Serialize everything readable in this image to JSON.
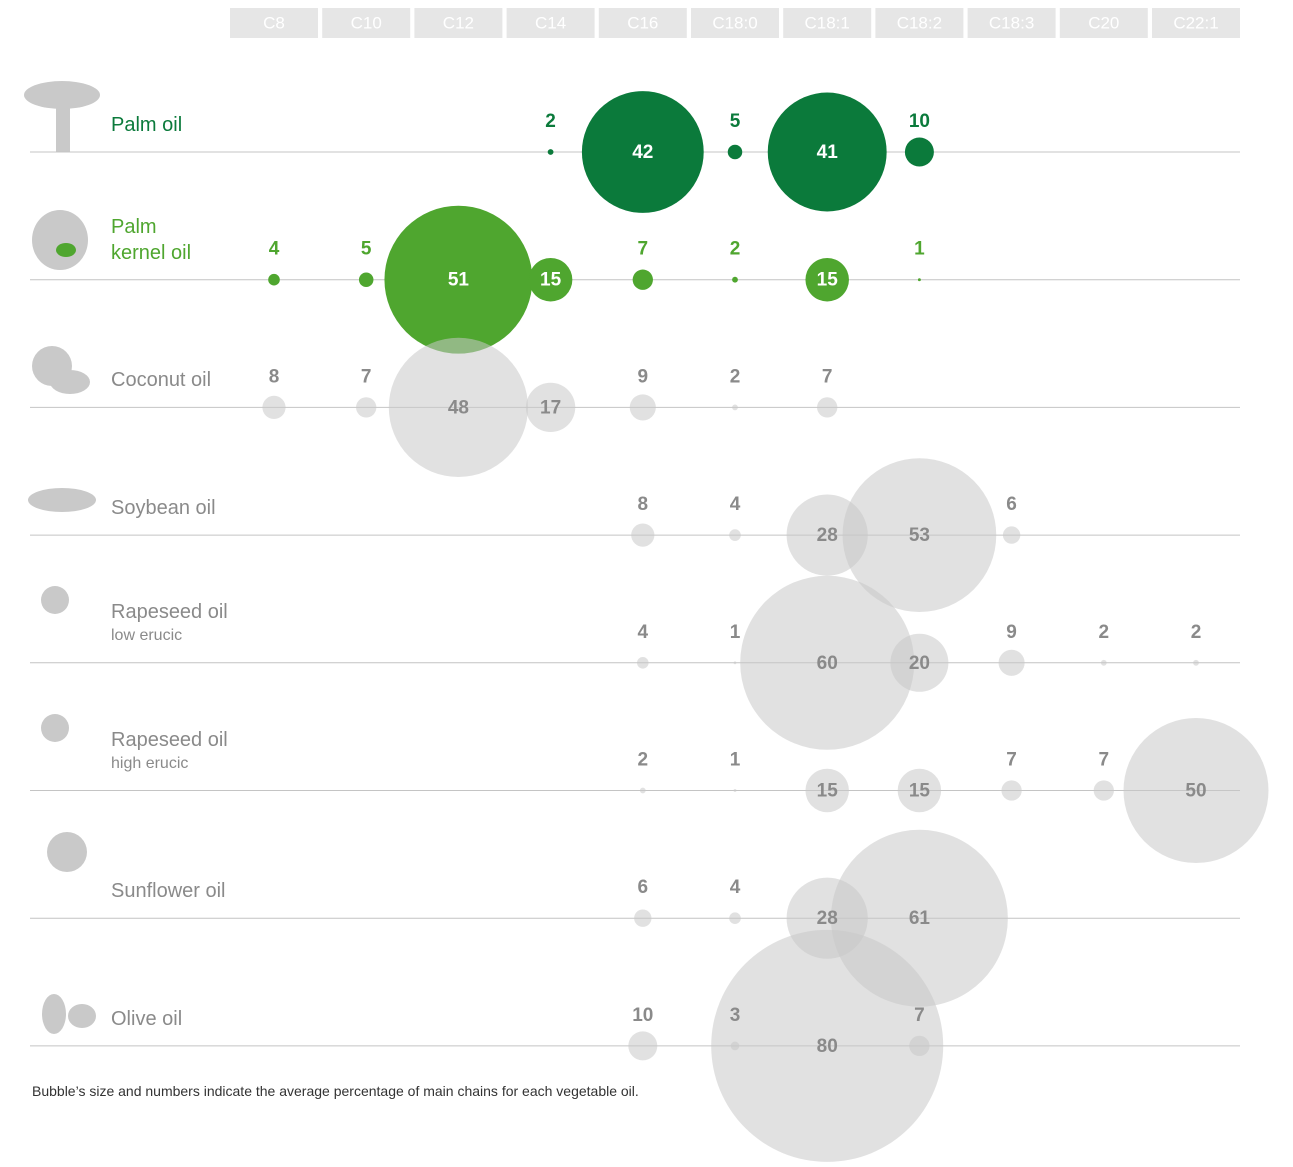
{
  "chart_data": {
    "type": "bubble",
    "categories": [
      "C8",
      "C10",
      "C12",
      "C14",
      "C16",
      "C18:0",
      "C18:1",
      "C18:2",
      "C18:3",
      "C20",
      "C22:1"
    ],
    "series": [
      {
        "name": "Palm oil",
        "color": "#0b7a3b",
        "label_color": "#0b7a3b",
        "inside_label_color": "#ffffff",
        "values": [
          null,
          null,
          null,
          2,
          42,
          5,
          41,
          10,
          null,
          null,
          null
        ]
      },
      {
        "name": "Palm kernel oil",
        "color": "#4fa62f",
        "label_color": "#4fa62f",
        "inside_label_color": "#ffffff",
        "values": [
          4,
          5,
          51,
          15,
          7,
          2,
          15,
          1,
          null,
          null,
          null
        ]
      },
      {
        "name": "Coconut oil",
        "color": "#c8c8c8",
        "label_color": "#8a8a8a",
        "inside_label_color": "#8a8a8a",
        "values": [
          8,
          7,
          48,
          17,
          9,
          2,
          7,
          null,
          null,
          null,
          null
        ]
      },
      {
        "name": "Soybean oil",
        "color": "#c8c8c8",
        "label_color": "#8a8a8a",
        "inside_label_color": "#8a8a8a",
        "values": [
          null,
          null,
          null,
          null,
          8,
          4,
          28,
          53,
          6,
          null,
          null
        ]
      },
      {
        "name": "Rapeseed oil",
        "subtitle": "low erucic",
        "color": "#c8c8c8",
        "label_color": "#8a8a8a",
        "inside_label_color": "#8a8a8a",
        "values": [
          null,
          null,
          null,
          null,
          4,
          1,
          60,
          20,
          9,
          2,
          2
        ]
      },
      {
        "name": "Rapeseed oil",
        "subtitle": "high erucic",
        "color": "#c8c8c8",
        "label_color": "#8a8a8a",
        "inside_label_color": "#8a8a8a",
        "values": [
          null,
          null,
          null,
          null,
          2,
          1,
          15,
          15,
          7,
          7,
          50
        ]
      },
      {
        "name": "Sunflower oil",
        "color": "#c8c8c8",
        "label_color": "#8a8a8a",
        "inside_label_color": "#8a8a8a",
        "values": [
          null,
          null,
          null,
          null,
          6,
          4,
          28,
          61,
          null,
          null,
          null
        ]
      },
      {
        "name": "Olive oil",
        "color": "#c8c8c8",
        "label_color": "#8a8a8a",
        "inside_label_color": "#8a8a8a",
        "values": [
          null,
          null,
          null,
          null,
          10,
          3,
          80,
          7,
          null,
          null,
          null
        ]
      }
    ],
    "note": "Bubble’s size and numbers indicate the average percentage of main chains for each vegetable oil."
  }
}
